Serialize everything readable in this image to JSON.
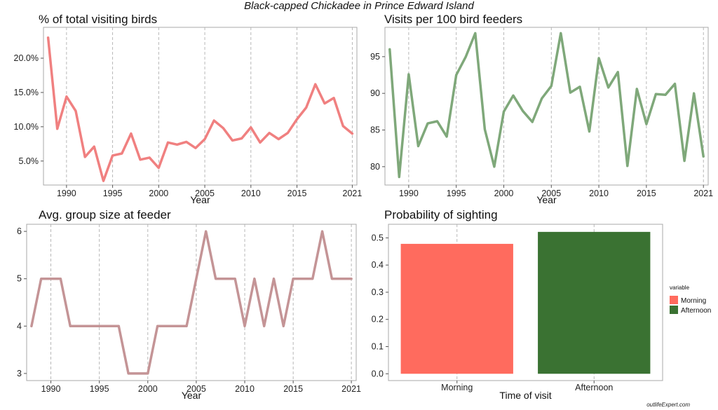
{
  "page": {
    "title": "Black-capped Chickadee in Prince Edward Island",
    "watermark": "outlifeExpert.com"
  },
  "chart_data": [
    {
      "id": "pct",
      "type": "line",
      "title": "% of total visiting birds",
      "xlabel": "Year",
      "ylabel": "",
      "color": "#f08080",
      "xlim": [
        1987.5,
        2021.5
      ],
      "ylim": [
        1.5,
        24.5
      ],
      "xticks": [
        1990,
        1995,
        2000,
        2005,
        2010,
        2015,
        2021
      ],
      "yticks": [
        5,
        10,
        15,
        20
      ],
      "ytick_labels": [
        "5.0%",
        "10.0%",
        "15.0%",
        "20.0%"
      ],
      "x": [
        1988,
        1989,
        1990,
        1991,
        1992,
        1993,
        1994,
        1995,
        1996,
        1997,
        1998,
        1999,
        2000,
        2001,
        2002,
        2003,
        2004,
        2005,
        2006,
        2007,
        2008,
        2009,
        2010,
        2011,
        2012,
        2013,
        2014,
        2015,
        2016,
        2017,
        2018,
        2019,
        2020,
        2021
      ],
      "values": [
        23.0,
        9.7,
        14.4,
        12.3,
        5.6,
        7.1,
        2.1,
        5.8,
        6.1,
        9.0,
        5.2,
        5.5,
        4.0,
        7.7,
        7.4,
        7.8,
        6.9,
        8.2,
        10.9,
        9.8,
        8.0,
        8.3,
        9.9,
        7.7,
        9.1,
        8.2,
        9.1,
        11.1,
        12.8,
        16.2,
        13.4,
        14.2,
        10.1,
        9.0
      ],
      "grid": "vertical-dashed"
    },
    {
      "id": "visits",
      "type": "line",
      "title": "Visits per 100 bird feeders",
      "xlabel": "Year",
      "ylabel": "",
      "color": "#7fa87a",
      "xlim": [
        1987.5,
        2021.5
      ],
      "ylim": [
        77.5,
        99.0
      ],
      "xticks": [
        1990,
        1995,
        2000,
        2005,
        2010,
        2015,
        2021
      ],
      "yticks": [
        80,
        85,
        90,
        95
      ],
      "ytick_labels": [
        "80",
        "85",
        "90",
        "95"
      ],
      "x": [
        1988,
        1989,
        1990,
        1991,
        1992,
        1993,
        1994,
        1995,
        1996,
        1997,
        1998,
        1999,
        2000,
        2001,
        2002,
        2003,
        2004,
        2005,
        2006,
        2007,
        2008,
        2009,
        2010,
        2011,
        2012,
        2013,
        2014,
        2015,
        2016,
        2017,
        2018,
        2019,
        2020,
        2021
      ],
      "values": [
        96,
        78.6,
        92.6,
        82.8,
        85.9,
        86.2,
        84.1,
        92.5,
        95.0,
        98.2,
        85.1,
        80.0,
        87.5,
        89.7,
        87.6,
        86.1,
        89.3,
        91.0,
        98.2,
        90.1,
        90.9,
        84.8,
        94.8,
        90.8,
        92.9,
        80.1,
        90.6,
        85.8,
        89.9,
        89.8,
        91.3,
        80.8,
        90.0,
        81.4
      ],
      "grid": "vertical-dashed"
    },
    {
      "id": "group",
      "type": "line",
      "title": "Avg. group size at feeder",
      "xlabel": "Year",
      "ylabel": "",
      "color": "#c49496",
      "xlim": [
        1987.5,
        2021.5
      ],
      "ylim": [
        2.85,
        6.15
      ],
      "xticks": [
        1990,
        1995,
        2000,
        2005,
        2010,
        2015,
        2021
      ],
      "yticks": [
        3,
        4,
        5,
        6
      ],
      "ytick_labels": [
        "3",
        "4",
        "5",
        "6"
      ],
      "x": [
        1988,
        1989,
        1990,
        1991,
        1992,
        1993,
        1994,
        1995,
        1996,
        1997,
        1998,
        1999,
        2000,
        2001,
        2002,
        2003,
        2004,
        2005,
        2006,
        2007,
        2008,
        2009,
        2010,
        2011,
        2012,
        2013,
        2014,
        2015,
        2016,
        2017,
        2018,
        2019,
        2020,
        2021
      ],
      "values": [
        4,
        5,
        5,
        5,
        4,
        4,
        4,
        4,
        4,
        4,
        3,
        3,
        3,
        4,
        4,
        4,
        4,
        5,
        6,
        5,
        5,
        5,
        4,
        5,
        4,
        5,
        4,
        5,
        5,
        5,
        6,
        5,
        5,
        5
      ],
      "grid": "vertical-dashed"
    },
    {
      "id": "prob",
      "type": "bar",
      "title": "Probability of sighting",
      "xlabel": "Time of visit",
      "ylabel": "",
      "categories": [
        "Morning",
        "Afternoon"
      ],
      "values": [
        0.478,
        0.522
      ],
      "colors": [
        "#ff6b5e",
        "#3a7232"
      ],
      "ylim": [
        -0.025,
        0.55
      ],
      "yticks": [
        0,
        0.1,
        0.2,
        0.3,
        0.4,
        0.5
      ],
      "ytick_labels": [
        "0.0",
        "0.1",
        "0.2",
        "0.3",
        "0.4",
        "0.5"
      ],
      "legend": {
        "title": "variable",
        "placement": "right",
        "entries": [
          "Morning",
          "Afternoon"
        ]
      },
      "grid": "vertical-dashed"
    }
  ]
}
